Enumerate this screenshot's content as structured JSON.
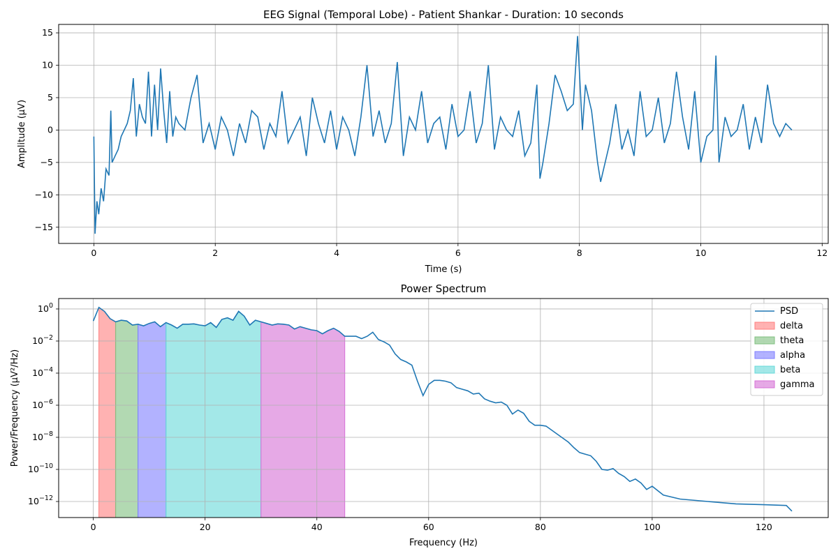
{
  "chart_data": [
    {
      "type": "line",
      "title": "EEG Signal (Temporal Lobe) - Patient Shankar - Duration: 10 seconds",
      "xlabel": "Time (s)",
      "ylabel": "Amplitude (μV)",
      "xlim": [
        -0.58,
        12.1
      ],
      "ylim": [
        -17.5,
        16.3
      ],
      "xticks": [
        0,
        2,
        4,
        6,
        8,
        10,
        12
      ],
      "yticks": [
        -15,
        -10,
        -5,
        0,
        5,
        10,
        15
      ],
      "grid": true,
      "color": "#1f77b4",
      "series": [
        {
          "x": [
            0.0,
            0.02,
            0.05,
            0.08,
            0.12,
            0.16,
            0.2,
            0.25,
            0.28,
            0.3,
            0.35,
            0.4,
            0.45,
            0.5,
            0.55,
            0.6,
            0.65,
            0.7,
            0.75,
            0.8,
            0.85,
            0.9,
            0.95,
            1.0,
            1.05,
            1.1,
            1.15,
            1.2,
            1.25,
            1.3,
            1.35,
            1.4,
            1.5,
            1.6,
            1.7,
            1.8,
            1.9,
            2.0,
            2.1,
            2.2,
            2.3,
            2.4,
            2.5,
            2.6,
            2.7,
            2.8,
            2.9,
            3.0,
            3.1,
            3.2,
            3.3,
            3.4,
            3.5,
            3.6,
            3.7,
            3.8,
            3.9,
            4.0,
            4.1,
            4.2,
            4.3,
            4.4,
            4.5,
            4.6,
            4.7,
            4.8,
            4.9,
            5.0,
            5.1,
            5.2,
            5.3,
            5.4,
            5.5,
            5.6,
            5.7,
            5.8,
            5.9,
            6.0,
            6.1,
            6.2,
            6.3,
            6.4,
            6.5,
            6.6,
            6.7,
            6.8,
            6.9,
            7.0,
            7.1,
            7.2,
            7.3,
            7.35,
            7.4,
            7.5,
            7.6,
            7.7,
            7.8,
            7.9,
            7.97,
            8.05,
            8.1,
            8.2,
            8.3,
            8.35,
            8.4,
            8.5,
            8.6,
            8.7,
            8.8,
            8.9,
            9.0,
            9.1,
            9.2,
            9.3,
            9.4,
            9.5,
            9.6,
            9.7,
            9.8,
            9.9,
            10.0,
            10.1,
            10.2,
            10.25,
            10.3,
            10.4,
            10.5,
            10.6,
            10.7,
            10.8,
            10.9,
            11.0,
            11.1,
            11.2,
            11.3,
            11.4,
            11.5
          ],
          "y": [
            -1.0,
            -16.0,
            -11.0,
            -13.0,
            -9.0,
            -11.0,
            -6.0,
            -7.0,
            3.0,
            -5.0,
            -4.0,
            -3.0,
            -1.0,
            0.0,
            1.0,
            3.0,
            8.0,
            -1.0,
            4.0,
            2.0,
            1.0,
            9.0,
            -1.0,
            7.0,
            0.0,
            9.5,
            3.0,
            -2.0,
            6.0,
            -1.0,
            2.0,
            1.0,
            0.0,
            5.0,
            8.5,
            -2.0,
            1.0,
            -3.0,
            2.0,
            0.0,
            -4.0,
            1.0,
            -2.0,
            3.0,
            2.0,
            -3.0,
            1.0,
            -1.0,
            6.0,
            -2.0,
            0.0,
            2.0,
            -4.0,
            5.0,
            1.0,
            -2.0,
            3.0,
            -3.0,
            2.0,
            0.0,
            -4.0,
            2.0,
            10.0,
            -1.0,
            3.0,
            -2.0,
            1.0,
            10.5,
            -4.0,
            2.0,
            0.0,
            6.0,
            -2.0,
            1.0,
            2.0,
            -3.0,
            4.0,
            -1.0,
            0.0,
            6.0,
            -2.0,
            1.0,
            10.0,
            -3.0,
            2.0,
            0.0,
            -1.0,
            3.0,
            -4.0,
            -2.0,
            7.0,
            -7.5,
            -5.0,
            1.0,
            8.5,
            6.0,
            3.0,
            4.0,
            14.5,
            0.0,
            7.0,
            3.0,
            -5.0,
            -8.0,
            -6.0,
            -2.0,
            4.0,
            -3.0,
            0.0,
            -4.0,
            6.0,
            -1.0,
            0.0,
            5.0,
            -2.0,
            1.0,
            9.0,
            2.0,
            -3.0,
            6.0,
            -5.0,
            -1.0,
            0.0,
            11.5,
            -5.0,
            2.0,
            -1.0,
            0.0,
            4.0,
            -3.0,
            2.0,
            -2.0,
            7.0,
            1.0,
            -1.0,
            1.0,
            0.0
          ]
        }
      ]
    },
    {
      "type": "area",
      "title": "Power Spectrum",
      "xlabel": "Frequency (Hz)",
      "ylabel": "Power/Frequency (μV²/Hz)",
      "yscale": "log",
      "xlim": [
        -6.2,
        131.5
      ],
      "ylim_log10": [
        -13.0,
        0.65
      ],
      "xticks": [
        0,
        20,
        40,
        60,
        80,
        100,
        120
      ],
      "yticks_exp": [
        0,
        -2,
        -4,
        -6,
        -8,
        -10,
        -12
      ],
      "grid": true,
      "legend_position": "top-right",
      "psd": {
        "name": "PSD",
        "color": "#1f77b4",
        "freq": [
          0,
          1,
          2,
          3,
          4,
          5,
          6,
          7,
          8,
          9,
          10,
          11,
          12,
          13,
          14,
          15,
          16,
          17,
          18,
          19,
          20,
          21,
          22,
          23,
          24,
          25,
          26,
          27,
          28,
          29,
          30,
          31,
          32,
          33,
          34,
          35,
          36,
          37,
          38,
          39,
          40,
          41,
          42,
          43,
          44,
          45,
          46,
          47,
          48,
          49,
          50,
          51,
          52,
          53,
          54,
          55,
          56,
          57,
          58,
          59,
          60,
          61,
          62,
          63,
          64,
          65,
          66,
          67,
          68,
          69,
          70,
          71,
          72,
          73,
          74,
          75,
          76,
          77,
          78,
          79,
          80,
          81,
          82,
          83,
          84,
          85,
          86,
          87,
          88,
          89,
          90,
          91,
          92,
          93,
          94,
          95,
          96,
          97,
          98,
          99,
          100,
          102,
          105,
          110,
          115,
          120,
          124,
          125
        ],
        "log10_power": [
          -0.75,
          0.1,
          -0.15,
          -0.6,
          -0.8,
          -0.7,
          -0.75,
          -1.0,
          -0.95,
          -1.05,
          -0.9,
          -0.8,
          -1.1,
          -0.85,
          -1.0,
          -1.2,
          -0.95,
          -0.95,
          -0.93,
          -1.0,
          -1.05,
          -0.85,
          -1.15,
          -0.65,
          -0.55,
          -0.7,
          -0.15,
          -0.45,
          -1.0,
          -0.7,
          -0.8,
          -0.9,
          -1.0,
          -0.93,
          -0.95,
          -1.0,
          -1.25,
          -1.1,
          -1.2,
          -1.3,
          -1.35,
          -1.55,
          -1.35,
          -1.2,
          -1.4,
          -1.7,
          -1.7,
          -1.7,
          -1.85,
          -1.7,
          -1.45,
          -1.9,
          -2.05,
          -2.25,
          -2.8,
          -3.15,
          -3.3,
          -3.5,
          -4.5,
          -5.4,
          -4.7,
          -4.45,
          -4.45,
          -4.5,
          -4.6,
          -4.9,
          -5.0,
          -5.1,
          -5.3,
          -5.25,
          -5.6,
          -5.75,
          -5.85,
          -5.8,
          -6.0,
          -6.55,
          -6.3,
          -6.5,
          -7.0,
          -7.25,
          -7.25,
          -7.3,
          -7.55,
          -7.8,
          -8.05,
          -8.3,
          -8.65,
          -8.95,
          -9.05,
          -9.15,
          -9.5,
          -10.0,
          -10.05,
          -9.95,
          -10.25,
          -10.45,
          -10.75,
          -10.6,
          -10.85,
          -11.25,
          -11.05,
          -11.6,
          -11.85,
          -12.0,
          -12.15,
          -12.2,
          -12.25,
          -12.6
        ]
      },
      "bands": [
        {
          "name": "delta",
          "range": [
            1,
            4
          ],
          "color": "#ff7f7f"
        },
        {
          "name": "theta",
          "range": [
            4,
            8
          ],
          "color": "#7fbf7f"
        },
        {
          "name": "alpha",
          "range": [
            8,
            13
          ],
          "color": "#7f7fff"
        },
        {
          "name": "beta",
          "range": [
            13,
            30
          ],
          "color": "#66d9d9"
        },
        {
          "name": "gamma",
          "range": [
            30,
            45
          ],
          "color": "#d670d6"
        }
      ]
    }
  ]
}
